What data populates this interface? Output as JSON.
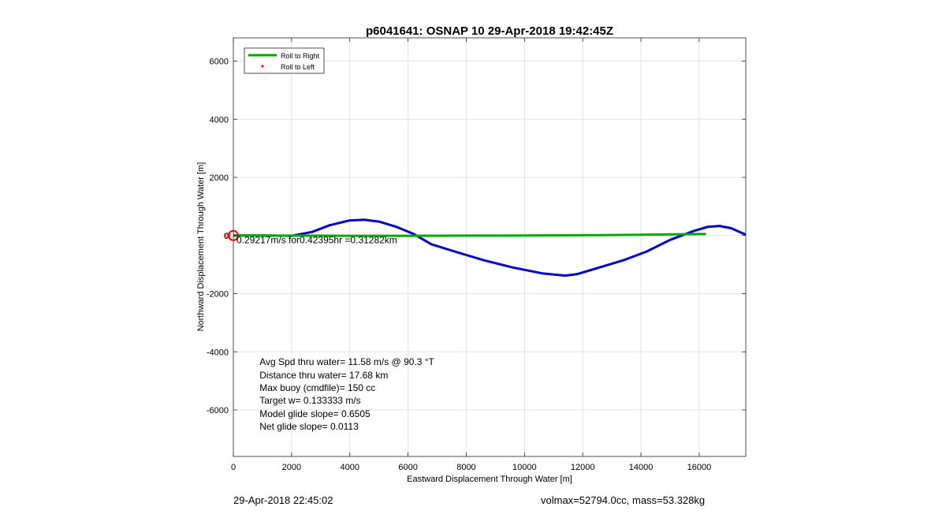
{
  "chart_data": {
    "type": "line",
    "title": "p6041641: OSNAP 10 29-Apr-2018 19:42:45Z",
    "xlabel": "Eastward Displacement Through Water [m]",
    "ylabel": "Northward Displacement Through Water [m]",
    "xlim": [
      0,
      17600
    ],
    "ylim": [
      -7600,
      6800
    ],
    "xticks": [
      0,
      2000,
      4000,
      6000,
      8000,
      10000,
      12000,
      14000,
      16000
    ],
    "yticks": [
      -6000,
      -4000,
      -2000,
      0,
      2000,
      4000,
      6000
    ],
    "grid": true,
    "legend_position": "top-left",
    "legend": [
      {
        "label": "Roll to Right",
        "color": "#00aa00",
        "marker": "line"
      },
      {
        "label": "Roll to Left",
        "color": "#ff0000",
        "marker": "dot"
      }
    ],
    "series": [
      {
        "name": "Roll to Right",
        "color": "#00aa00",
        "x": [
          0,
          2000,
          4000,
          6000,
          8000,
          10000,
          12000,
          14000,
          16000,
          16200
        ],
        "y": [
          0,
          -5,
          -10,
          -10,
          -5,
          0,
          10,
          25,
          50,
          50
        ]
      },
      {
        "color": "#0000cc",
        "x": [
          0,
          1000,
          2000,
          2700,
          3300,
          4000,
          4500,
          5000,
          5600,
          6200,
          6800,
          7600,
          8600,
          9600,
          10600,
          11400,
          11800,
          12400,
          13400,
          14200,
          15000,
          15800,
          16300,
          16700,
          17100,
          17600
        ],
        "y": [
          0,
          0,
          -10,
          120,
          350,
          520,
          540,
          480,
          300,
          50,
          -300,
          -550,
          -850,
          -1100,
          -1300,
          -1380,
          -1330,
          -1150,
          -850,
          -550,
          -150,
          150,
          300,
          330,
          250,
          30
        ]
      }
    ],
    "markers": [
      {
        "x": 0,
        "y": 0,
        "shape": "circle",
        "color": "#ff0000"
      }
    ],
    "annotations": [
      {
        "text": "0.29217m/s for0.42395hr =0.31282km",
        "x": 0,
        "y": -150
      },
      {
        "text": "Avg Spd thru water= 11.58 m/s @  90.3 °T",
        "x": 900,
        "y": -4350
      },
      {
        "text": "Distance thru water= 17.68 km",
        "x": 900,
        "y": -4800
      },
      {
        "text": "Max buoy (cmdfile)= 150 cc",
        "x": 900,
        "y": -5240
      },
      {
        "text": "Target w= 0.133333 m/s",
        "x": 900,
        "y": -5680
      },
      {
        "text": "Model glide slope= 0.6505",
        "x": 900,
        "y": -6130
      },
      {
        "text": "Net glide slope= 0.0113",
        "x": 900,
        "y": -6570
      }
    ]
  },
  "footer": {
    "left_text": "29-Apr-2018 22:45:02",
    "right_text": "volmax=52794.0cc, mass=53.328kg"
  }
}
